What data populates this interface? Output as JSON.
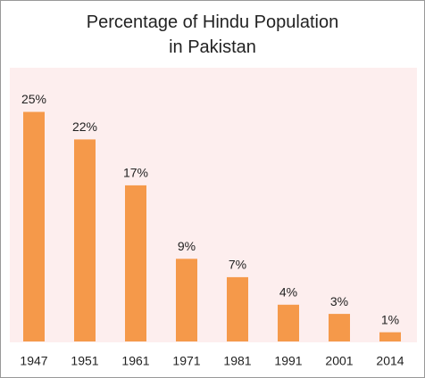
{
  "chart_data": {
    "type": "bar",
    "title": "Percentage of Hindu Population in Pakistan",
    "categories": [
      "1947",
      "1951",
      "1961",
      "1971",
      "1981",
      "1991",
      "2001",
      "2014"
    ],
    "values": [
      25,
      22,
      17,
      9,
      7,
      4,
      3,
      1
    ],
    "value_labels": [
      "25%",
      "22%",
      "17%",
      "9%",
      "7%",
      "4%",
      "3%",
      "1%"
    ],
    "color": "#f5994a"
  }
}
